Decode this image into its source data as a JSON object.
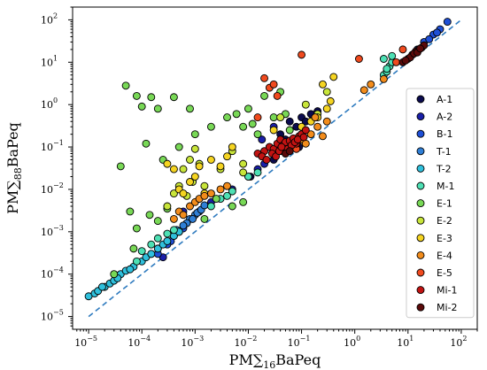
{
  "chart_data": {
    "type": "scatter",
    "xlabel": {
      "prefix": "PM",
      "sub": "16",
      "suffix": "BaPeq"
    },
    "ylabel": {
      "prefix": "PM",
      "sub": "88",
      "suffix": "BaPeq"
    },
    "xscale": "log",
    "yscale": "log",
    "xlim": [
      5e-06,
      200
    ],
    "ylim": [
      5e-06,
      200
    ],
    "x_ticks": [
      {
        "base": "10",
        "exp": "−5",
        "value": 1e-05
      },
      {
        "base": "10",
        "exp": "−4",
        "value": 0.0001
      },
      {
        "base": "10",
        "exp": "−3",
        "value": 0.001
      },
      {
        "base": "10",
        "exp": "−2",
        "value": 0.01
      },
      {
        "base": "10",
        "exp": "−1",
        "value": 0.1
      },
      {
        "base": "10",
        "exp": "0",
        "value": 1
      },
      {
        "base": "10",
        "exp": "1",
        "value": 10
      },
      {
        "base": "10",
        "exp": "2",
        "value": 100
      }
    ],
    "y_ticks": [
      {
        "base": "10",
        "exp": "−5",
        "value": 1e-05
      },
      {
        "base": "10",
        "exp": "−4",
        "value": 0.0001
      },
      {
        "base": "10",
        "exp": "−3",
        "value": 0.001
      },
      {
        "base": "10",
        "exp": "−2",
        "value": 0.01
      },
      {
        "base": "10",
        "exp": "−1",
        "value": 0.1
      },
      {
        "base": "10",
        "exp": "0",
        "value": 1
      },
      {
        "base": "10",
        "exp": "1",
        "value": 10
      },
      {
        "base": "10",
        "exp": "2",
        "value": 100
      }
    ],
    "grid": false,
    "legend_position": "right",
    "reference_line": {
      "style": "dashed",
      "color": "#2f7bbf",
      "x": [
        1e-05,
        100
      ],
      "y": [
        1e-05,
        100
      ]
    },
    "series": [
      {
        "name": "A-1",
        "color": "#0b0b4e",
        "points": [
          [
            0.05,
            0.15
          ],
          [
            0.08,
            0.3
          ],
          [
            0.1,
            0.5
          ],
          [
            0.12,
            0.4
          ],
          [
            0.07,
            0.12
          ],
          [
            0.15,
            0.6
          ],
          [
            0.03,
            0.05
          ],
          [
            0.2,
            0.7
          ],
          [
            0.04,
            0.2
          ],
          [
            0.06,
            0.4
          ],
          [
            0.09,
            0.1
          ],
          [
            0.011,
            0.02
          ],
          [
            0.0005,
            0.001
          ],
          [
            0.0002,
            0.0004
          ]
        ]
      },
      {
        "name": "A-2",
        "color": "#1a1fa8",
        "points": [
          [
            0.02,
            0.04
          ],
          [
            0.015,
            0.03
          ],
          [
            0.025,
            0.1
          ],
          [
            0.01,
            0.02
          ],
          [
            0.035,
            0.09
          ],
          [
            0.018,
            0.15
          ],
          [
            0.00025,
            0.00025
          ],
          [
            0.0006,
            0.003
          ],
          [
            0.00015,
            0.0003
          ],
          [
            0.03,
            0.3
          ],
          [
            0.002,
            0.005
          ],
          [
            0.005,
            0.01
          ]
        ]
      },
      {
        "name": "B-1",
        "color": "#1e4fd6",
        "points": [
          [
            20,
            30
          ],
          [
            30,
            45
          ],
          [
            40,
            60
          ],
          [
            15,
            20
          ],
          [
            55,
            90
          ],
          [
            25,
            35
          ],
          [
            35,
            50
          ],
          [
            0.00035,
            0.0006
          ],
          [
            0.0003,
            0.0005
          ],
          [
            0.0004,
            0.0008
          ],
          [
            0.0006,
            0.0012
          ],
          [
            0.0002,
            0.0003
          ]
        ]
      },
      {
        "name": "T-1",
        "color": "#2f7fd6",
        "points": [
          [
            0.0008,
            0.002
          ],
          [
            0.001,
            0.0025
          ],
          [
            0.0012,
            0.003
          ],
          [
            0.0007,
            0.0016
          ],
          [
            0.0006,
            0.0014
          ],
          [
            0.0009,
            0.002
          ],
          [
            0.0005,
            0.001
          ],
          [
            0.0004,
            0.0009
          ],
          [
            0.0011,
            0.0028
          ],
          [
            0.00045,
            0.0011
          ],
          [
            0.0013,
            0.0033
          ],
          [
            0.0015,
            0.0042
          ]
        ]
      },
      {
        "name": "T-2",
        "color": "#2fc0dc",
        "points": [
          [
            1e-05,
            3e-05
          ],
          [
            1.3e-05,
            3.5e-05
          ],
          [
            1.5e-05,
            4e-05
          ],
          [
            2e-05,
            5e-05
          ],
          [
            2.5e-05,
            6e-05
          ],
          [
            3e-05,
            7e-05
          ],
          [
            4e-05,
            0.0001
          ],
          [
            5e-05,
            0.00012
          ],
          [
            7e-05,
            0.00015
          ],
          [
            0.0001,
            0.0002
          ],
          [
            0.00012,
            0.00025
          ],
          [
            0.00015,
            0.0003
          ],
          [
            0.0002,
            0.0004
          ],
          [
            0.00025,
            0.0005
          ],
          [
            0.0003,
            0.0006
          ],
          [
            0.0004,
            0.0008
          ],
          [
            0.0005,
            0.001
          ],
          [
            6e-05,
            0.00013
          ],
          [
            1.8e-05,
            5e-05
          ],
          [
            3.5e-05,
            8e-05
          ]
        ]
      },
      {
        "name": "M-1",
        "color": "#4de0b4",
        "points": [
          [
            3.5,
            5
          ],
          [
            4,
            6
          ],
          [
            4.5,
            8
          ],
          [
            5,
            10
          ],
          [
            4,
            7
          ],
          [
            3.5,
            12
          ],
          [
            5,
            14
          ],
          [
            8e-05,
            0.0002
          ],
          [
            0.0001,
            0.00035
          ],
          [
            0.00015,
            0.0005
          ],
          [
            0.0002,
            0.0007
          ],
          [
            0.0003,
            0.0009
          ],
          [
            0.0004,
            0.0011
          ],
          [
            0.002,
            0.004
          ],
          [
            0.003,
            0.006
          ],
          [
            0.004,
            0.007
          ],
          [
            0.005,
            0.009
          ],
          [
            0.01,
            0.02
          ],
          [
            0.015,
            0.025
          ]
        ]
      },
      {
        "name": "E-1",
        "color": "#78d856",
        "points": [
          [
            5e-05,
            2.8
          ],
          [
            8e-05,
            1.6
          ],
          [
            0.0001,
            0.9
          ],
          [
            0.00015,
            1.5
          ],
          [
            0.0002,
            0.8
          ],
          [
            0.0004,
            1.5
          ],
          [
            0.0008,
            0.8
          ],
          [
            4e-05,
            0.035
          ],
          [
            0.00012,
            0.12
          ],
          [
            0.00025,
            0.05
          ],
          [
            0.0005,
            0.1
          ],
          [
            0.001,
            0.2
          ],
          [
            0.002,
            0.3
          ],
          [
            0.004,
            0.5
          ],
          [
            0.006,
            0.6
          ],
          [
            6e-05,
            0.003
          ],
          [
            8e-05,
            0.0012
          ],
          [
            0.00014,
            0.0025
          ],
          [
            0.0002,
            0.0018
          ],
          [
            0.0003,
            0.0035
          ],
          [
            0.02,
            1.6
          ],
          [
            0.03,
            0.5
          ],
          [
            0.04,
            2.0
          ],
          [
            0.008,
            0.3
          ],
          [
            0.01,
            0.8
          ],
          [
            0.012,
            0.35
          ],
          [
            0.015,
            0.2
          ],
          [
            0.06,
            0.25
          ],
          [
            0.008,
            0.005
          ],
          [
            0.005,
            0.004
          ],
          [
            0.0025,
            0.006
          ],
          [
            7e-05,
            0.0004
          ],
          [
            0.0015,
            0.002
          ],
          [
            3e-05,
            0.0001
          ],
          [
            0.05,
            0.6
          ]
        ]
      },
      {
        "name": "E-2",
        "color": "#c8e53a",
        "points": [
          [
            0.0006,
            0.03
          ],
          [
            0.0008,
            0.05
          ],
          [
            0.001,
            0.09
          ],
          [
            0.0012,
            0.04
          ],
          [
            0.0004,
            0.008
          ],
          [
            0.0005,
            0.012
          ],
          [
            0.003,
            0.03
          ],
          [
            0.005,
            0.08
          ],
          [
            0.008,
            0.04
          ],
          [
            0.0015,
            0.012
          ],
          [
            0.0007,
            0.007
          ],
          [
            0.12,
            1.0
          ],
          [
            0.2,
            0.6
          ],
          [
            0.3,
            2.0
          ],
          [
            0.0003,
            0.004
          ],
          [
            0.0009,
            0.015
          ],
          [
            0.04,
            0.5
          ],
          [
            0.008,
            0.025
          ]
        ]
      },
      {
        "name": "E-3",
        "color": "#f5d421",
        "points": [
          [
            0.0003,
            0.04
          ],
          [
            0.0004,
            0.03
          ],
          [
            0.0005,
            0.01
          ],
          [
            0.0006,
            0.008
          ],
          [
            0.0008,
            0.015
          ],
          [
            0.001,
            0.02
          ],
          [
            0.0012,
            0.035
          ],
          [
            0.002,
            0.05
          ],
          [
            0.003,
            0.035
          ],
          [
            0.005,
            0.1
          ],
          [
            0.03,
            0.25
          ],
          [
            0.1,
            0.3
          ],
          [
            0.15,
            0.4
          ],
          [
            0.2,
            0.5
          ],
          [
            0.3,
            0.8
          ],
          [
            0.35,
            1.2
          ],
          [
            0.25,
            3.0
          ],
          [
            0.4,
            4.5
          ],
          [
            0.0015,
            0.008
          ],
          [
            0.004,
            0.06
          ]
        ]
      },
      {
        "name": "E-4",
        "color": "#f28c1c",
        "points": [
          [
            0.0004,
            0.002
          ],
          [
            0.0005,
            0.003
          ],
          [
            0.0006,
            0.0025
          ],
          [
            0.0008,
            0.004
          ],
          [
            0.001,
            0.005
          ],
          [
            0.0012,
            0.006
          ],
          [
            0.0015,
            0.007
          ],
          [
            0.002,
            0.008
          ],
          [
            0.003,
            0.01
          ],
          [
            0.004,
            0.012
          ],
          [
            0.1,
            0.15
          ],
          [
            0.15,
            0.2
          ],
          [
            0.2,
            0.3
          ],
          [
            0.3,
            0.4
          ],
          [
            0.12,
            0.12
          ],
          [
            0.08,
            0.1
          ],
          [
            0.25,
            0.18
          ],
          [
            0.05,
            0.07
          ],
          [
            2,
            3
          ],
          [
            1.5,
            2.2
          ],
          [
            0.18,
            0.5
          ],
          [
            3.5,
            4
          ]
        ]
      },
      {
        "name": "E-5",
        "color": "#f04a1e",
        "points": [
          [
            0.02,
            4.2
          ],
          [
            0.025,
            2.5
          ],
          [
            0.03,
            3.0
          ],
          [
            0.035,
            1.6
          ],
          [
            0.015,
            0.5
          ],
          [
            0.1,
            15.0
          ],
          [
            1.2,
            12.0
          ],
          [
            0.05,
            0.1
          ],
          [
            0.07,
            0.15
          ],
          [
            0.04,
            0.08
          ],
          [
            0.06,
            0.12
          ],
          [
            0.08,
            0.09
          ],
          [
            0.1,
            0.2
          ],
          [
            6,
            10
          ],
          [
            8,
            20
          ]
        ]
      },
      {
        "name": "Mi-1",
        "color": "#c21312",
        "points": [
          [
            0.015,
            0.07
          ],
          [
            0.02,
            0.08
          ],
          [
            0.025,
            0.1
          ],
          [
            0.03,
            0.09
          ],
          [
            0.035,
            0.12
          ],
          [
            0.04,
            0.15
          ],
          [
            0.045,
            0.11
          ],
          [
            0.05,
            0.13
          ],
          [
            0.055,
            0.09
          ],
          [
            0.06,
            0.14
          ],
          [
            0.07,
            0.16
          ],
          [
            0.08,
            0.12
          ],
          [
            0.09,
            0.18
          ],
          [
            0.1,
            0.2
          ],
          [
            0.12,
            0.25
          ],
          [
            0.018,
            0.06
          ],
          [
            0.022,
            0.05
          ],
          [
            0.028,
            0.07
          ],
          [
            0.033,
            0.06
          ],
          [
            0.038,
            0.08
          ],
          [
            0.042,
            0.1
          ],
          [
            0.065,
            0.11
          ],
          [
            0.075,
            0.13
          ],
          [
            0.085,
            0.15
          ],
          [
            0.11,
            0.17
          ]
        ]
      },
      {
        "name": "Mi-2",
        "color": "#5b0a0a",
        "points": [
          [
            8,
            10
          ],
          [
            10,
            12
          ],
          [
            12,
            15
          ],
          [
            14,
            18
          ],
          [
            16,
            20
          ],
          [
            18,
            22
          ],
          [
            20,
            25
          ],
          [
            11,
            13
          ],
          [
            13,
            16
          ],
          [
            9,
            11
          ],
          [
            15,
            17
          ],
          [
            17,
            21
          ],
          [
            0.05,
            0.07
          ],
          [
            0.06,
            0.08
          ]
        ]
      }
    ]
  }
}
